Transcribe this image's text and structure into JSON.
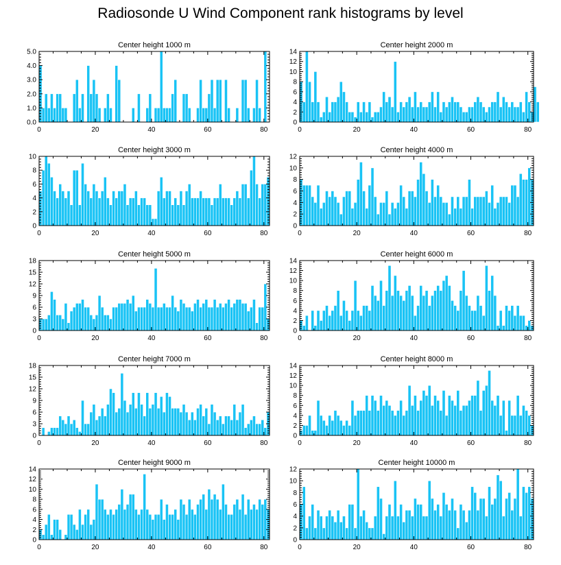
{
  "title": "Radiosonde U Wind Component rank histograms by level",
  "colors": {
    "bar": "#19C3F5",
    "bar_edge": "#ffffff",
    "axis": "#000000"
  },
  "chart_data": [
    {
      "type": "bar",
      "title": "Center height 1000 m",
      "xlim": [
        0,
        82
      ],
      "ylim": [
        0,
        5
      ],
      "xticks": [
        "0",
        "20",
        "40",
        "60",
        "80"
      ],
      "yticks": [
        "0.0",
        "1.0",
        "2.0",
        "3.0",
        "4.0",
        "5.0"
      ],
      "values": [
        4,
        1,
        2,
        1,
        2,
        1,
        2,
        2,
        1,
        1,
        0,
        0,
        2,
        3,
        1,
        2,
        0,
        4,
        2,
        3,
        2,
        1,
        0,
        1,
        2,
        1,
        0,
        4,
        3,
        0,
        0,
        0,
        0,
        1,
        0,
        2,
        0,
        0,
        1,
        2,
        0,
        1,
        1,
        5,
        1,
        1,
        1,
        2,
        3,
        0,
        0,
        2,
        2,
        1,
        0,
        0,
        1,
        3,
        1,
        1,
        2,
        3,
        1,
        3,
        3,
        0,
        3,
        1,
        0,
        0,
        1,
        0,
        3,
        3,
        1,
        0,
        1,
        3,
        1,
        0,
        5
      ],
      "xlabel": "",
      "ylabel": ""
    },
    {
      "type": "bar",
      "title": "Center height 2000 m",
      "xlim": [
        0,
        82
      ],
      "ylim": [
        0,
        14
      ],
      "xticks": [
        "0",
        "20",
        "40",
        "60",
        "80"
      ],
      "yticks": [
        "0",
        "2",
        "4",
        "6",
        "8",
        "10",
        "12",
        "14"
      ],
      "values": [
        8,
        4,
        14,
        8,
        4,
        10,
        4,
        1,
        2,
        5,
        2,
        4,
        4,
        5,
        8,
        6,
        4,
        2,
        2,
        1,
        4,
        2,
        4,
        2,
        4,
        1,
        2,
        2,
        3,
        6,
        4,
        5,
        3,
        12,
        2,
        4,
        3,
        4,
        5,
        3,
        6,
        3,
        4,
        3,
        3,
        4,
        6,
        3,
        6,
        2,
        4,
        3,
        4,
        5,
        4,
        4,
        3,
        2,
        2,
        3,
        3,
        4,
        5,
        4,
        3,
        2,
        3,
        4,
        4,
        6,
        3,
        5,
        4,
        3,
        4,
        3,
        3,
        4,
        2,
        6,
        4,
        2,
        7,
        4
      ],
      "xlabel": "",
      "ylabel": ""
    },
    {
      "type": "bar",
      "title": "Center height 3000 m",
      "xlim": [
        0,
        82
      ],
      "ylim": [
        0,
        10
      ],
      "xticks": [
        "0",
        "20",
        "40",
        "60",
        "80"
      ],
      "yticks": [
        "0",
        "2",
        "4",
        "6",
        "8",
        "10"
      ],
      "values": [
        5,
        8,
        10,
        9,
        7,
        5,
        4,
        6,
        5,
        4,
        5,
        3,
        8,
        8,
        3,
        9,
        6,
        5,
        4,
        6,
        5,
        4,
        5,
        7,
        4,
        3,
        5,
        4,
        5,
        5,
        6,
        3,
        4,
        4,
        5,
        3,
        4,
        4,
        3,
        3,
        1,
        1,
        5,
        7,
        4,
        5,
        5,
        3,
        4,
        3,
        5,
        3,
        5,
        6,
        4,
        4,
        4,
        5,
        4,
        4,
        4,
        3,
        4,
        4,
        6,
        4,
        4,
        4,
        3,
        4,
        5,
        4,
        6,
        6,
        4,
        8,
        10,
        6,
        4,
        6,
        6,
        7
      ],
      "xlabel": "",
      "ylabel": ""
    },
    {
      "type": "bar",
      "title": "Center height 4000 m",
      "xlim": [
        0,
        82
      ],
      "ylim": [
        0,
        12
      ],
      "xticks": [
        "0",
        "20",
        "40",
        "60",
        "80"
      ],
      "yticks": [
        "0",
        "2",
        "4",
        "6",
        "8",
        "10",
        "12"
      ],
      "values": [
        8,
        7,
        7,
        7,
        5,
        4,
        7,
        3,
        4,
        6,
        5,
        6,
        5,
        4,
        2,
        5,
        6,
        6,
        3,
        4,
        8,
        11,
        6,
        3,
        7,
        10,
        5,
        2,
        4,
        4,
        6,
        2,
        4,
        3,
        4,
        7,
        5,
        3,
        6,
        6,
        5,
        8,
        11,
        9,
        6,
        4,
        8,
        5,
        7,
        5,
        4,
        4,
        2,
        5,
        3,
        5,
        3,
        5,
        5,
        8,
        3,
        5,
        5,
        5,
        5,
        6,
        4,
        7,
        3,
        4,
        5,
        5,
        5,
        4,
        7,
        7,
        5,
        9,
        8,
        8,
        10,
        8
      ],
      "xlabel": "",
      "ylabel": ""
    },
    {
      "type": "bar",
      "title": "Center height 5000 m",
      "xlim": [
        0,
        82
      ],
      "ylim": [
        0,
        18
      ],
      "xticks": [
        "0",
        "20",
        "40",
        "60",
        "80"
      ],
      "yticks": [
        "0",
        "3",
        "6",
        "9",
        "12",
        "15",
        "18"
      ],
      "values": [
        3,
        3,
        3,
        4,
        10,
        8,
        4,
        4,
        3,
        7,
        2,
        5,
        6,
        7,
        7,
        8,
        6,
        6,
        4,
        3,
        4,
        9,
        6,
        4,
        4,
        3,
        6,
        6,
        7,
        7,
        7,
        8,
        7,
        9,
        5,
        6,
        6,
        6,
        8,
        7,
        6,
        16,
        6,
        6,
        7,
        6,
        6,
        9,
        6,
        5,
        8,
        7,
        6,
        6,
        5,
        7,
        8,
        6,
        7,
        8,
        6,
        6,
        8,
        6,
        7,
        6,
        7,
        8,
        6,
        7,
        8,
        8,
        7,
        7,
        5,
        6,
        8,
        2,
        6,
        6,
        12,
        3
      ],
      "xlabel": "",
      "ylabel": ""
    },
    {
      "type": "bar",
      "title": "Center height 6000 m",
      "xlim": [
        0,
        82
      ],
      "ylim": [
        0,
        14
      ],
      "xticks": [
        "0",
        "20",
        "40",
        "60",
        "80"
      ],
      "yticks": [
        "0",
        "2",
        "4",
        "6",
        "8",
        "10",
        "12",
        "14"
      ],
      "values": [
        2,
        1,
        3,
        0,
        4,
        1,
        4,
        2,
        4,
        5,
        3,
        4,
        5,
        8,
        3,
        6,
        4,
        2,
        4,
        10,
        4,
        3,
        5,
        5,
        4,
        9,
        7,
        6,
        10,
        5,
        8,
        13,
        7,
        11,
        8,
        7,
        6,
        8,
        9,
        7,
        3,
        5,
        9,
        7,
        8,
        5,
        7,
        8,
        9,
        8,
        10,
        11,
        9,
        6,
        5,
        4,
        8,
        12,
        7,
        5,
        4,
        4,
        7,
        5,
        3,
        13,
        8,
        11,
        7,
        1,
        4,
        1,
        5,
        4,
        5,
        3,
        5,
        3,
        3,
        1,
        2,
        1
      ],
      "xlabel": "",
      "ylabel": ""
    },
    {
      "type": "bar",
      "title": "Center height 7000 m",
      "xlim": [
        0,
        82
      ],
      "ylim": [
        0,
        18
      ],
      "xticks": [
        "0",
        "20",
        "40",
        "60",
        "80"
      ],
      "yticks": [
        "0",
        "3",
        "6",
        "9",
        "12",
        "15",
        "18"
      ],
      "values": [
        0,
        2,
        0,
        1,
        2,
        2,
        2,
        5,
        4,
        3,
        5,
        3,
        4,
        2,
        1,
        9,
        3,
        3,
        6,
        8,
        4,
        5,
        7,
        5,
        8,
        12,
        11,
        6,
        7,
        16,
        9,
        6,
        8,
        11,
        7,
        11,
        8,
        5,
        11,
        7,
        8,
        11,
        7,
        10,
        6,
        11,
        10,
        7,
        7,
        7,
        6,
        8,
        6,
        4,
        6,
        4,
        7,
        8,
        5,
        7,
        3,
        8,
        6,
        4,
        5,
        3,
        5,
        5,
        4,
        8,
        4,
        6,
        8,
        2,
        3,
        4,
        5,
        3,
        3,
        4,
        2,
        6
      ],
      "xlabel": "",
      "ylabel": ""
    },
    {
      "type": "bar",
      "title": "Center height 8000 m",
      "xlim": [
        0,
        82
      ],
      "ylim": [
        0,
        14
      ],
      "xticks": [
        "0",
        "20",
        "40",
        "60",
        "80"
      ],
      "yticks": [
        "0",
        "2",
        "4",
        "6",
        "8",
        "10",
        "12",
        "14"
      ],
      "values": [
        1,
        2,
        2,
        4,
        1,
        1,
        7,
        4,
        3,
        2,
        4,
        3,
        5,
        4,
        3,
        2,
        3,
        2,
        7,
        4,
        5,
        5,
        5,
        8,
        5,
        8,
        7,
        5,
        8,
        6,
        7,
        6,
        5,
        4,
        5,
        7,
        4,
        5,
        10,
        6,
        8,
        5,
        7,
        9,
        8,
        10,
        6,
        8,
        7,
        5,
        9,
        4,
        8,
        7,
        6,
        9,
        5,
        6,
        6,
        7,
        8,
        8,
        11,
        5,
        9,
        10,
        13,
        7,
        6,
        8,
        4,
        7,
        1,
        7,
        4,
        4,
        8,
        4,
        6,
        5,
        4,
        2
      ],
      "xlabel": "",
      "ylabel": ""
    },
    {
      "type": "bar",
      "title": "Center height 9000 m",
      "xlim": [
        0,
        82
      ],
      "ylim": [
        0,
        14
      ],
      "xticks": [
        "0",
        "20",
        "40",
        "60",
        "80"
      ],
      "yticks": [
        "0",
        "2",
        "4",
        "6",
        "8",
        "10",
        "12",
        "14"
      ],
      "values": [
        2,
        1,
        3,
        5,
        1,
        4,
        4,
        2,
        0,
        1,
        5,
        5,
        3,
        2,
        6,
        3,
        5,
        6,
        3,
        4,
        11,
        8,
        8,
        6,
        5,
        6,
        5,
        6,
        7,
        10,
        6,
        7,
        9,
        9,
        6,
        5,
        6,
        13,
        6,
        5,
        4,
        5,
        5,
        8,
        4,
        7,
        5,
        5,
        6,
        4,
        8,
        7,
        5,
        8,
        6,
        5,
        7,
        8,
        9,
        6,
        10,
        8,
        9,
        8,
        6,
        11,
        7,
        5,
        5,
        7,
        8,
        6,
        9,
        5,
        8,
        6,
        7,
        6,
        8,
        7,
        8,
        6
      ],
      "xlabel": "",
      "ylabel": ""
    },
    {
      "type": "bar",
      "title": "Center height 10000 m",
      "xlim": [
        0,
        82
      ],
      "ylim": [
        0,
        12
      ],
      "xticks": [
        "0",
        "20",
        "40",
        "60",
        "80"
      ],
      "yticks": [
        "0",
        "2",
        "4",
        "6",
        "8",
        "10",
        "12"
      ],
      "values": [
        6,
        9,
        2,
        4,
        6,
        2,
        5,
        4,
        2,
        4,
        5,
        4,
        3,
        5,
        3,
        4,
        2,
        6,
        6,
        2,
        12,
        4,
        5,
        3,
        2,
        2,
        4,
        9,
        7,
        1,
        4,
        6,
        4,
        10,
        4,
        6,
        3,
        5,
        5,
        4,
        7,
        6,
        6,
        4,
        4,
        10,
        7,
        5,
        6,
        4,
        8,
        6,
        5,
        7,
        5,
        2,
        6,
        5,
        3,
        5,
        9,
        8,
        5,
        7,
        7,
        4,
        9,
        6,
        7,
        11,
        10,
        4,
        7,
        8,
        5,
        7,
        12,
        4,
        9,
        8,
        9,
        7
      ],
      "xlabel": "",
      "ylabel": ""
    }
  ]
}
